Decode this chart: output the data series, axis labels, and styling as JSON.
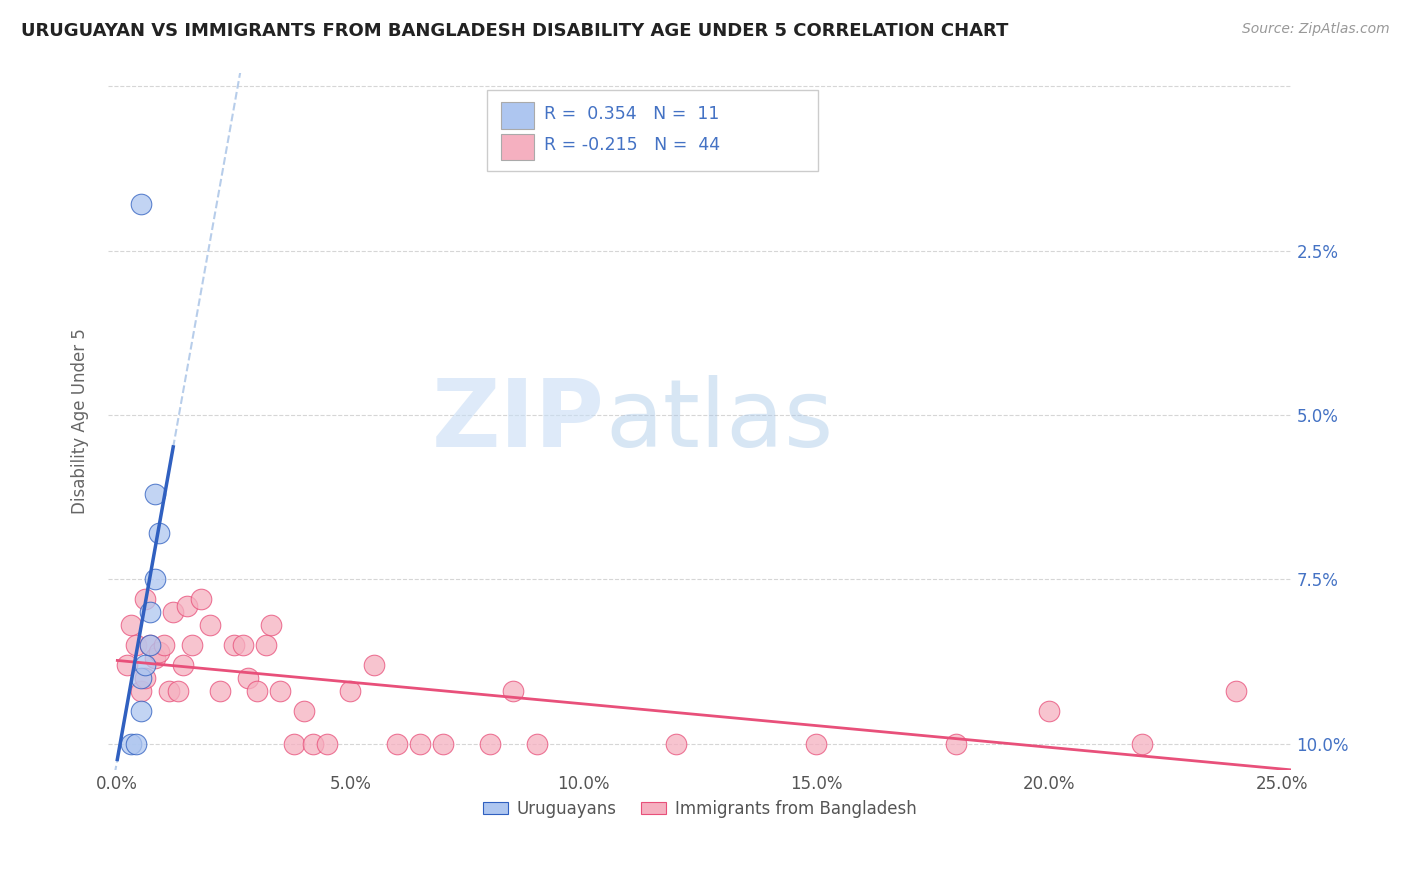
{
  "title": "URUGUAYAN VS IMMIGRANTS FROM BANGLADESH DISABILITY AGE UNDER 5 CORRELATION CHART",
  "source": "Source: ZipAtlas.com",
  "ylabel": "Disability Age Under 5",
  "xlim": [
    -0.002,
    0.252
  ],
  "ylim": [
    -0.004,
    0.102
  ],
  "xticks": [
    0.0,
    0.05,
    0.1,
    0.15,
    0.2,
    0.25
  ],
  "yticks": [
    0.0,
    0.025,
    0.05,
    0.075,
    0.1
  ],
  "xtick_labels": [
    "0.0%",
    "5.0%",
    "10.0%",
    "15.0%",
    "20.0%",
    "25.0%"
  ],
  "ytick_labels_right": [
    "10.0%",
    "7.5%",
    "5.0%",
    "2.5%",
    ""
  ],
  "legend_bottom": [
    "Uruguayans",
    "Immigrants from Bangladesh"
  ],
  "color_uruguayan": "#aec6f0",
  "color_bangladesh": "#f5b0c0",
  "color_uruguayan_line": "#3060c0",
  "color_bangladesh_line": "#e8507a",
  "color_dashed": "#b0c8e8",
  "color_grid": "#cccccc",
  "color_ytick": "#4472c4",
  "watermark_zip": "ZIP",
  "watermark_atlas": "atlas",
  "background_color": "#ffffff",
  "uruguayan_x": [
    0.003,
    0.004,
    0.005,
    0.005,
    0.005,
    0.006,
    0.007,
    0.007,
    0.008,
    0.008,
    0.009
  ],
  "uruguayan_y": [
    0.0,
    0.0,
    0.005,
    0.01,
    0.082,
    0.012,
    0.015,
    0.02,
    0.025,
    0.038,
    0.032
  ],
  "bangladesh_x": [
    0.002,
    0.003,
    0.004,
    0.005,
    0.006,
    0.006,
    0.007,
    0.008,
    0.009,
    0.01,
    0.011,
    0.012,
    0.013,
    0.014,
    0.015,
    0.016,
    0.018,
    0.02,
    0.022,
    0.025,
    0.027,
    0.028,
    0.03,
    0.032,
    0.033,
    0.035,
    0.038,
    0.04,
    0.042,
    0.045,
    0.05,
    0.055,
    0.06,
    0.065,
    0.07,
    0.08,
    0.085,
    0.09,
    0.12,
    0.15,
    0.18,
    0.2,
    0.22,
    0.24
  ],
  "bangladesh_y": [
    0.012,
    0.018,
    0.015,
    0.008,
    0.022,
    0.01,
    0.015,
    0.013,
    0.014,
    0.015,
    0.008,
    0.02,
    0.008,
    0.012,
    0.021,
    0.015,
    0.022,
    0.018,
    0.008,
    0.015,
    0.015,
    0.01,
    0.008,
    0.015,
    0.018,
    0.008,
    0.0,
    0.005,
    0.0,
    0.0,
    0.008,
    0.012,
    0.0,
    0.0,
    0.0,
    0.0,
    0.008,
    0.0,
    0.0,
    0.0,
    0.0,
    0.005,
    0.0,
    0.008
  ]
}
